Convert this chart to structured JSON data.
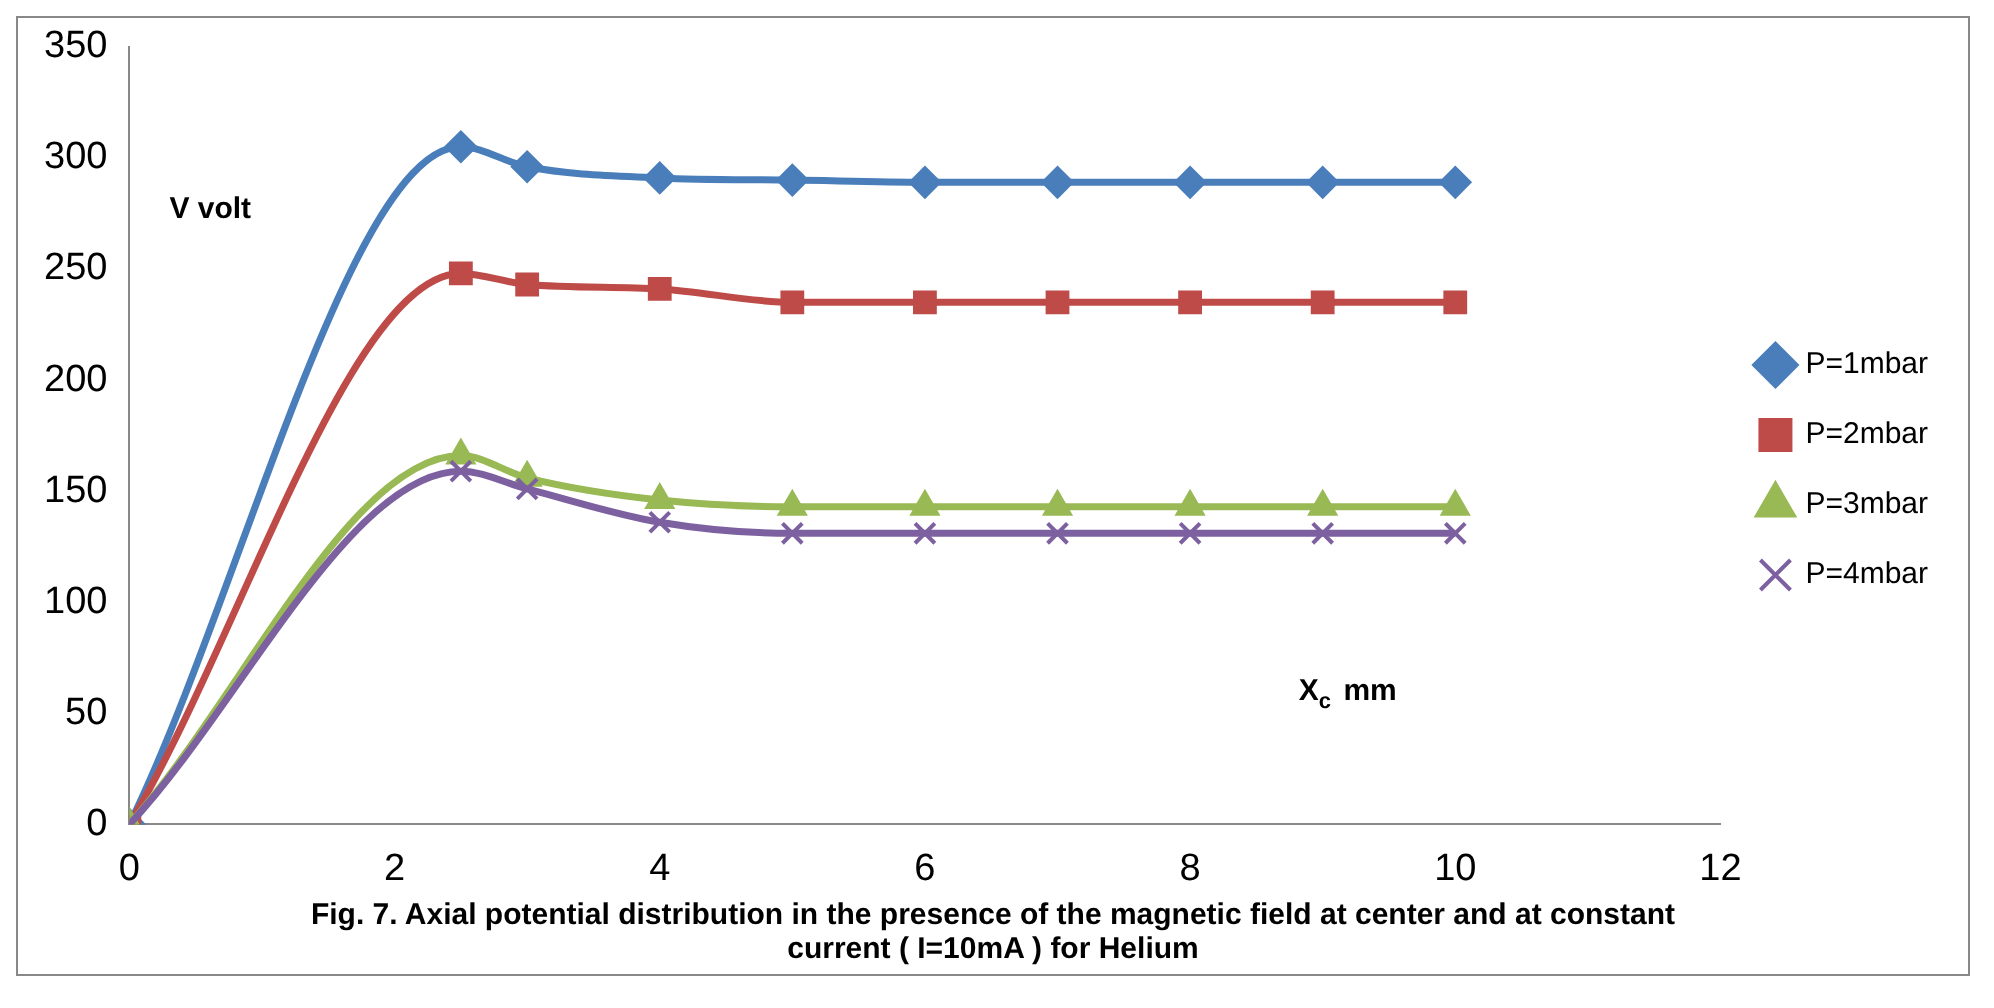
{
  "chart_data": {
    "type": "line",
    "title": "Fig. 7. Axial potential distribution in the presence of the magnetic field  at center and at constant current ( I=10mA ) for Helium",
    "xlabel": "X$_{c}$ mm",
    "ylabel": "V volt",
    "x": [
      0,
      2.5,
      3,
      4,
      5,
      6,
      7,
      8,
      9,
      10
    ],
    "series": [
      {
        "name": "P=1mbar",
        "color": "#4a7ebb",
        "marker": "diamond",
        "values": [
          0,
          305,
          296,
          291,
          290,
          289,
          289,
          289,
          289,
          289
        ]
      },
      {
        "name": "P=2mbar",
        "color": "#be4b48",
        "marker": "square",
        "values": [
          0,
          248,
          243,
          241,
          235,
          235,
          235,
          235,
          235,
          235
        ]
      },
      {
        "name": "P=3mbar",
        "color": "#98b954",
        "marker": "triangle",
        "values": [
          0,
          166,
          156,
          146,
          143,
          143,
          143,
          143,
          143,
          143
        ]
      },
      {
        "name": "P=4mbar",
        "color": "#7d60a0",
        "marker": "cross",
        "values": [
          0,
          159,
          151,
          136,
          131,
          131,
          131,
          131,
          131,
          131
        ]
      }
    ],
    "xlim": [
      0,
      12
    ],
    "xticks": [
      0,
      2,
      4,
      6,
      8,
      10,
      12
    ],
    "ylim": [
      0,
      350
    ],
    "yticks": [
      0,
      50,
      100,
      150,
      200,
      250,
      300,
      350
    ],
    "grid": false,
    "legend": "right",
    "line_style": "solid"
  }
}
